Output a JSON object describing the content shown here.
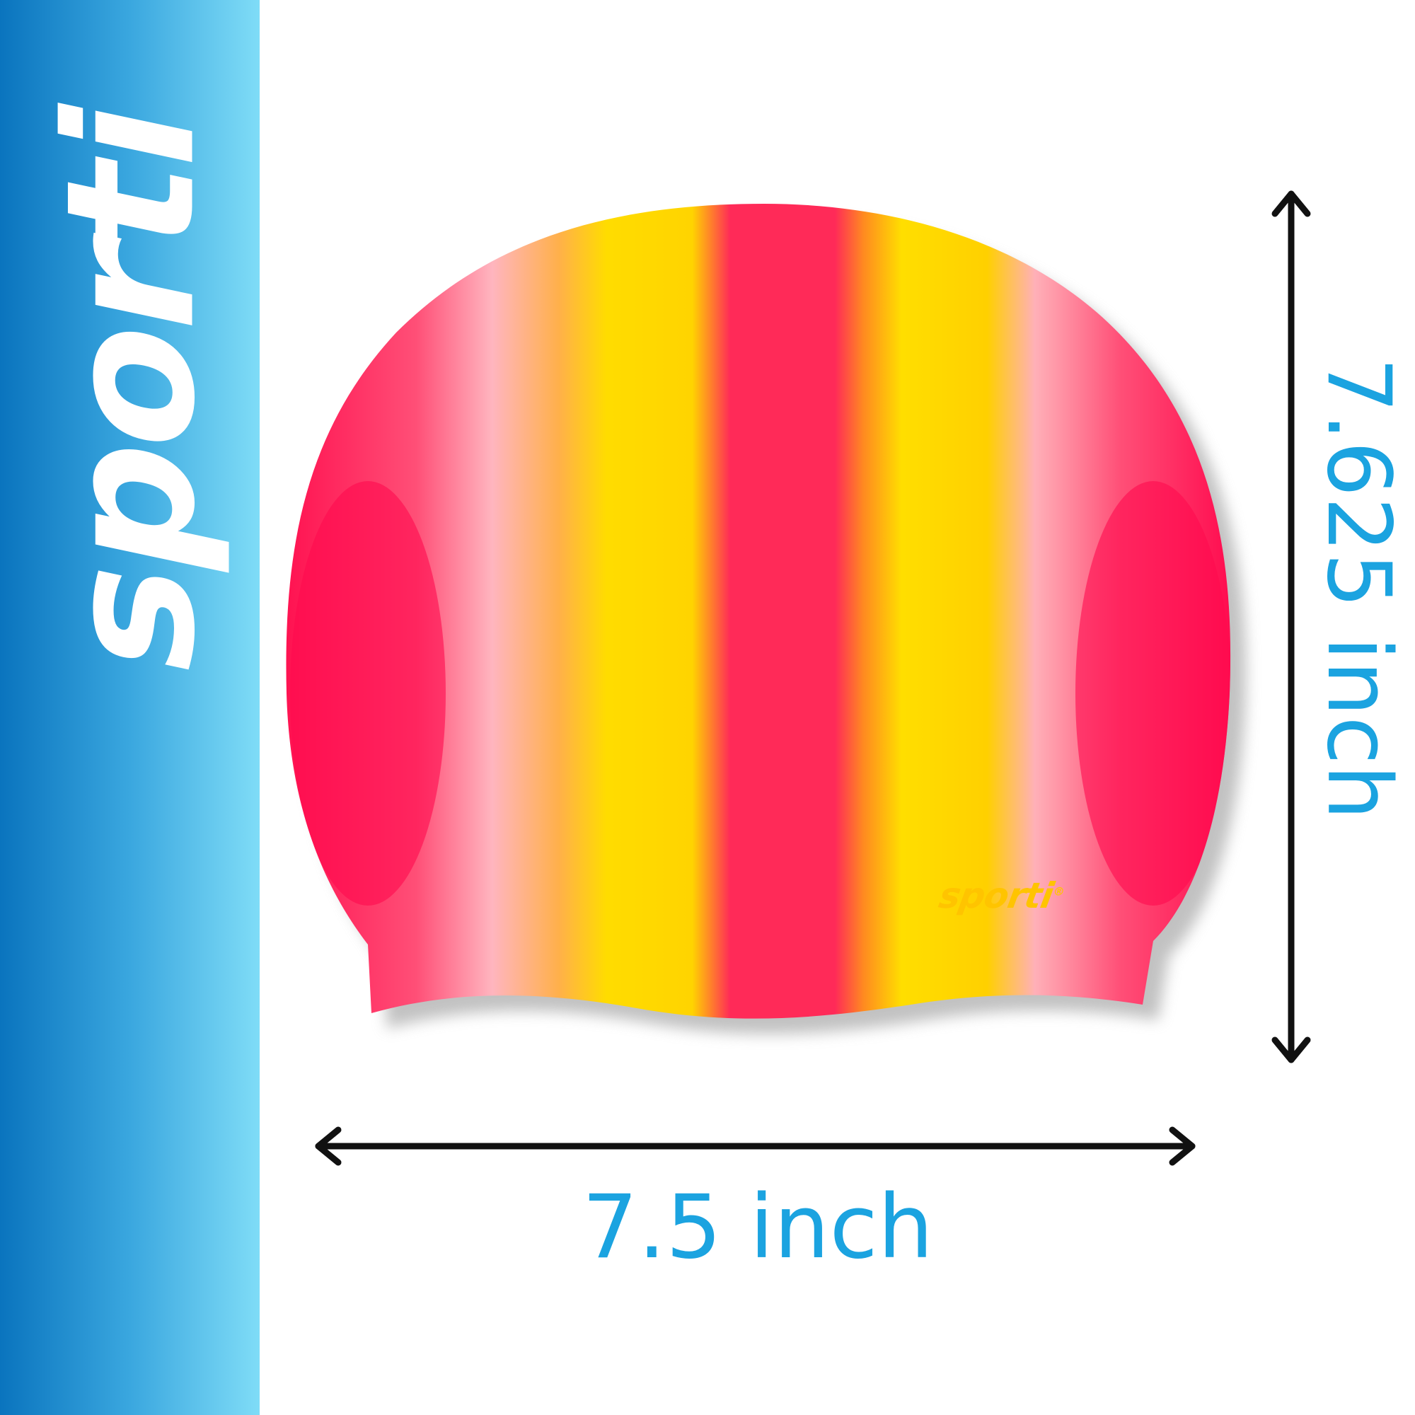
{
  "brand": {
    "sidebar_logo": "sporti",
    "cap_logo": "sporti",
    "registered_mark": "®"
  },
  "dimensions": {
    "width_label": "7.5 inch",
    "height_label": "7.625 inch"
  },
  "colors": {
    "sidebar_dark": "#0a74be",
    "sidebar_light": "#7fdcf7",
    "dimension_text": "#1ba3e0",
    "cap_pink": "#ff1f58",
    "cap_yellow": "#ffdd00",
    "cap_light_pink": "#ffb3bd",
    "arrow": "#111111"
  }
}
